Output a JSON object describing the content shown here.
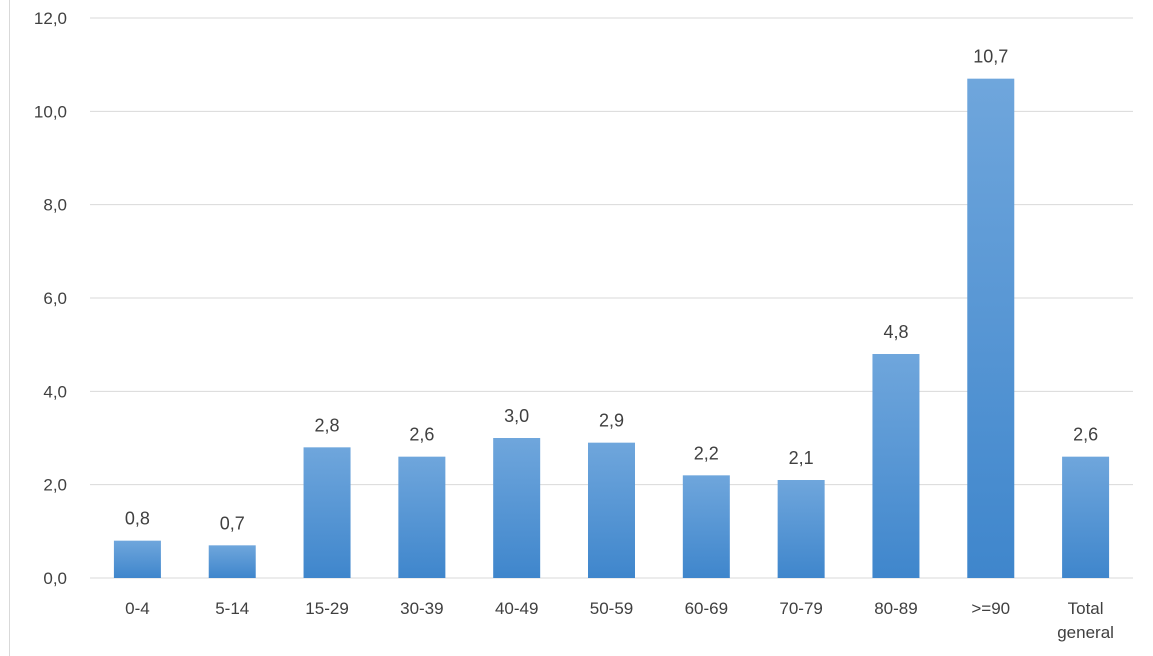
{
  "chart_data": {
    "type": "bar",
    "categories": [
      "0-4",
      "5-14",
      "15-29",
      "30-39",
      "40-49",
      "50-59",
      "60-69",
      "70-79",
      "80-89",
      ">=90",
      "Total general"
    ],
    "values": [
      0.8,
      0.7,
      2.8,
      2.6,
      3.0,
      2.9,
      2.2,
      2.1,
      4.8,
      10.7,
      2.6
    ],
    "data_labels": [
      "0,8",
      "0,7",
      "2,8",
      "2,6",
      "3,0",
      "2,9",
      "2,2",
      "2,1",
      "4,8",
      "10,7",
      "2,6"
    ],
    "y_ticks": [
      {
        "value": 0,
        "label": "0,0"
      },
      {
        "value": 2,
        "label": "2,0"
      },
      {
        "value": 4,
        "label": "4,0"
      },
      {
        "value": 6,
        "label": "6,0"
      },
      {
        "value": 8,
        "label": "8,0"
      },
      {
        "value": 10,
        "label": "10,0"
      },
      {
        "value": 12,
        "label": "12,0"
      }
    ],
    "ylim": [
      0,
      12
    ],
    "title": "",
    "xlabel": "",
    "ylabel": "",
    "grid": true,
    "legend": "none",
    "colors": {
      "bar_top": "#6fa6dc",
      "bar_bottom": "#3f86cc",
      "grid": "#d9d9d9",
      "text": "#404040"
    }
  }
}
